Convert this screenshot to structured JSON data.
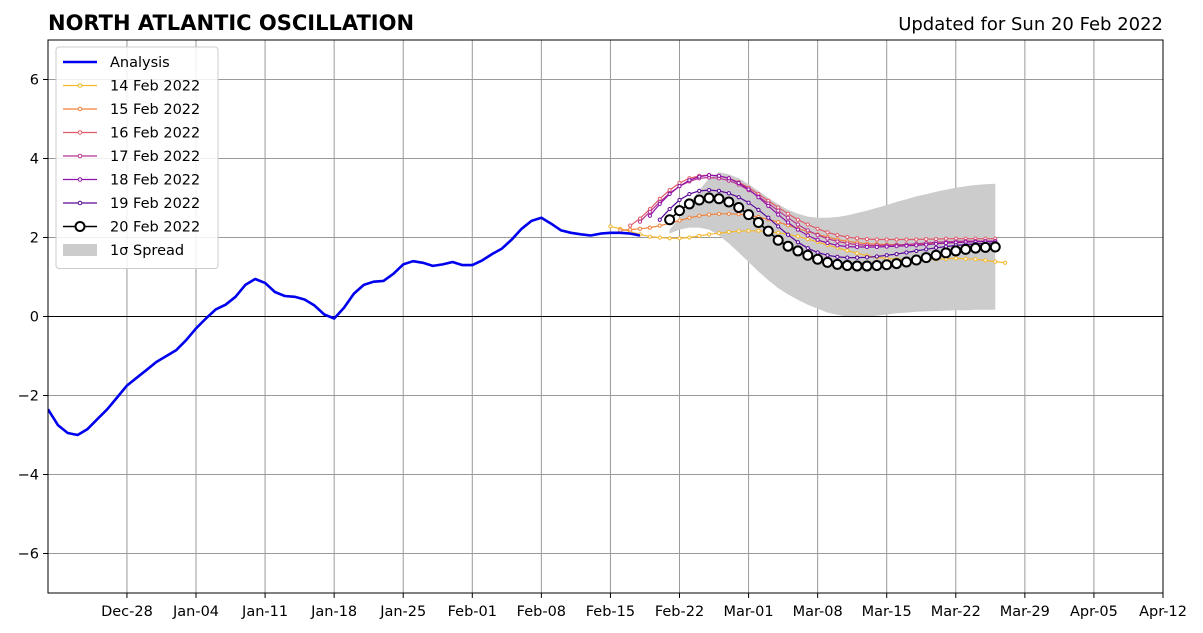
{
  "header": {
    "title": "NORTH ATLANTIC OSCILLATION",
    "updated": "Updated for Sun 20 Feb 2022"
  },
  "chart_data": {
    "type": "line",
    "title": "NORTH ATLANTIC OSCILLATION",
    "subtitle": "Updated for Sun 20 Feb 2022",
    "xlabel": "",
    "ylabel": "",
    "x_range": [
      "2021-12-20",
      "2022-04-12"
    ],
    "ylim": [
      -7,
      7
    ],
    "x_ticks": [
      {
        "date": "2021-12-28",
        "label": "Dec-28"
      },
      {
        "date": "2022-01-04",
        "label": "Jan-04"
      },
      {
        "date": "2022-01-11",
        "label": "Jan-11"
      },
      {
        "date": "2022-01-18",
        "label": "Jan-18"
      },
      {
        "date": "2022-01-25",
        "label": "Jan-25"
      },
      {
        "date": "2022-02-01",
        "label": "Feb-01"
      },
      {
        "date": "2022-02-08",
        "label": "Feb-08"
      },
      {
        "date": "2022-02-15",
        "label": "Feb-15"
      },
      {
        "date": "2022-02-22",
        "label": "Feb-22"
      },
      {
        "date": "2022-03-01",
        "label": "Mar-01"
      },
      {
        "date": "2022-03-08",
        "label": "Mar-08"
      },
      {
        "date": "2022-03-15",
        "label": "Mar-15"
      },
      {
        "date": "2022-03-22",
        "label": "Mar-22"
      },
      {
        "date": "2022-03-29",
        "label": "Mar-29"
      },
      {
        "date": "2022-04-05",
        "label": "Apr-05"
      },
      {
        "date": "2022-04-12",
        "label": "Apr-12"
      }
    ],
    "y_ticks": [
      {
        "value": 6,
        "label": "6"
      },
      {
        "value": 4,
        "label": "4"
      },
      {
        "value": 2,
        "label": "2"
      },
      {
        "value": 0,
        "label": "0"
      },
      {
        "value": -2,
        "label": "−2"
      },
      {
        "value": -4,
        "label": "−4"
      },
      {
        "value": -6,
        "label": "−6"
      }
    ],
    "grid": true,
    "zero_line": true,
    "legend": {
      "position": "top-left"
    },
    "analysis": {
      "name": "Analysis",
      "color": "#0000ee",
      "start": "2021-12-20",
      "values": [
        -2.35,
        -2.75,
        -2.95,
        -3.0,
        -2.85,
        -2.6,
        -2.35,
        -2.05,
        -1.75,
        -1.55,
        -1.35,
        -1.15,
        -1.0,
        -0.85,
        -0.6,
        -0.3,
        -0.05,
        0.18,
        0.3,
        0.5,
        0.8,
        0.95,
        0.85,
        0.62,
        0.52,
        0.5,
        0.43,
        0.28,
        0.05,
        -0.05,
        0.22,
        0.58,
        0.8,
        0.88,
        0.9,
        1.08,
        1.32,
        1.4,
        1.36,
        1.28,
        1.32,
        1.38,
        1.3,
        1.3,
        1.42,
        1.58,
        1.72,
        1.95,
        2.22,
        2.42,
        2.5,
        2.35,
        2.18,
        2.12,
        2.08,
        2.05,
        2.1,
        2.12,
        2.12,
        2.1,
        2.05
      ]
    },
    "forecasts": [
      {
        "name": "14 Feb 2022",
        "color": "#f5b82e",
        "start": "2022-02-15",
        "values": [
          2.28,
          2.22,
          2.15,
          2.08,
          2.02,
          2.0,
          1.98,
          1.98,
          2.0,
          2.04,
          2.08,
          2.11,
          2.14,
          2.16,
          2.17,
          2.17,
          2.15,
          2.12,
          2.08,
          2.03,
          1.96,
          1.89,
          1.81,
          1.74,
          1.67,
          1.6,
          1.54,
          1.5,
          1.47,
          1.45,
          1.44,
          1.44,
          1.44,
          1.45,
          1.46,
          1.47,
          1.46,
          1.45,
          1.42,
          1.39,
          1.36
        ]
      },
      {
        "name": "15 Feb 2022",
        "color": "#f0813a",
        "start": "2022-02-16",
        "values": [
          2.18,
          2.2,
          2.22,
          2.25,
          2.3,
          2.36,
          2.43,
          2.5,
          2.55,
          2.58,
          2.6,
          2.6,
          2.59,
          2.56,
          2.52,
          2.46,
          2.39,
          2.31,
          2.23,
          2.15,
          2.08,
          2.01,
          1.95,
          1.9,
          1.87,
          1.84,
          1.83,
          1.82,
          1.82,
          1.82,
          1.83,
          1.84,
          1.85,
          1.86,
          1.87,
          1.88,
          1.89,
          1.9,
          1.9
        ]
      },
      {
        "name": "16 Feb 2022",
        "color": "#e05a6a",
        "start": "2022-02-17",
        "values": [
          2.3,
          2.48,
          2.72,
          2.98,
          3.2,
          3.38,
          3.5,
          3.56,
          3.58,
          3.56,
          3.5,
          3.4,
          3.26,
          3.1,
          2.93,
          2.76,
          2.6,
          2.45,
          2.33,
          2.22,
          2.13,
          2.06,
          2.01,
          1.98,
          1.96,
          1.95,
          1.95,
          1.95,
          1.95,
          1.95,
          1.96,
          1.96,
          1.97,
          1.97,
          1.97,
          1.97,
          1.97,
          1.97
        ]
      },
      {
        "name": "17 Feb 2022",
        "color": "#b83594",
        "start": "2022-02-18",
        "values": [
          2.4,
          2.65,
          2.9,
          3.12,
          3.3,
          3.42,
          3.5,
          3.52,
          3.5,
          3.44,
          3.34,
          3.2,
          3.04,
          2.86,
          2.68,
          2.5,
          2.33,
          2.18,
          2.06,
          1.97,
          1.9,
          1.85,
          1.82,
          1.8,
          1.8,
          1.8,
          1.81,
          1.82,
          1.84,
          1.86,
          1.88,
          1.89,
          1.9,
          1.91,
          1.91,
          1.91,
          1.91
        ]
      },
      {
        "name": "18 Feb 2022",
        "color": "#8e12a8",
        "start": "2022-02-19",
        "values": [
          2.55,
          2.85,
          3.1,
          3.3,
          3.45,
          3.54,
          3.58,
          3.56,
          3.5,
          3.38,
          3.22,
          3.02,
          2.8,
          2.58,
          2.38,
          2.2,
          2.05,
          1.94,
          1.86,
          1.8,
          1.77,
          1.76,
          1.76,
          1.76,
          1.77,
          1.78,
          1.79,
          1.8,
          1.82,
          1.84,
          1.86,
          1.87,
          1.88,
          1.89,
          1.9,
          1.9
        ]
      },
      {
        "name": "19 Feb 2022",
        "color": "#5b079a",
        "start": "2022-02-20",
        "values": [
          2.45,
          2.72,
          2.95,
          3.1,
          3.18,
          3.2,
          3.18,
          3.12,
          3.02,
          2.88,
          2.7,
          2.5,
          2.28,
          2.07,
          1.88,
          1.73,
          1.62,
          1.55,
          1.51,
          1.49,
          1.49,
          1.5,
          1.52,
          1.55,
          1.58,
          1.62,
          1.66,
          1.7,
          1.74,
          1.77,
          1.8,
          1.82,
          1.84,
          1.85,
          1.86
        ]
      },
      {
        "name": "20 Feb 2022",
        "color": "#000000",
        "start": "2022-02-21",
        "values": [
          2.45,
          2.68,
          2.85,
          2.95,
          3.0,
          2.98,
          2.9,
          2.76,
          2.58,
          2.38,
          2.16,
          1.93,
          1.78,
          1.66,
          1.55,
          1.45,
          1.37,
          1.32,
          1.29,
          1.28,
          1.28,
          1.29,
          1.31,
          1.34,
          1.38,
          1.43,
          1.49,
          1.55,
          1.61,
          1.66,
          1.7,
          1.73,
          1.75,
          1.76
        ]
      }
    ],
    "spread": {
      "name": "1σ Spread",
      "color": "#cccccc",
      "start": "2022-02-21",
      "upper": [
        2.2,
        2.5,
        2.85,
        3.2,
        3.5,
        3.65,
        3.6,
        3.5,
        3.35,
        3.18,
        3.0,
        2.84,
        2.7,
        2.6,
        2.53,
        2.5,
        2.5,
        2.52,
        2.56,
        2.62,
        2.68,
        2.75,
        2.82,
        2.9,
        2.97,
        3.04,
        3.1,
        3.16,
        3.21,
        3.26,
        3.3,
        3.33,
        3.35,
        3.36
      ],
      "lower": [
        2.1,
        2.2,
        2.25,
        2.25,
        2.2,
        2.05,
        1.85,
        1.62,
        1.38,
        1.14,
        0.92,
        0.72,
        0.56,
        0.42,
        0.3,
        0.2,
        0.1,
        0.04,
        0.0,
        -0.02,
        0.0,
        0.02,
        0.05,
        0.08,
        0.1,
        0.12,
        0.13,
        0.14,
        0.15,
        0.16,
        0.16,
        0.17,
        0.17,
        0.17
      ]
    }
  }
}
